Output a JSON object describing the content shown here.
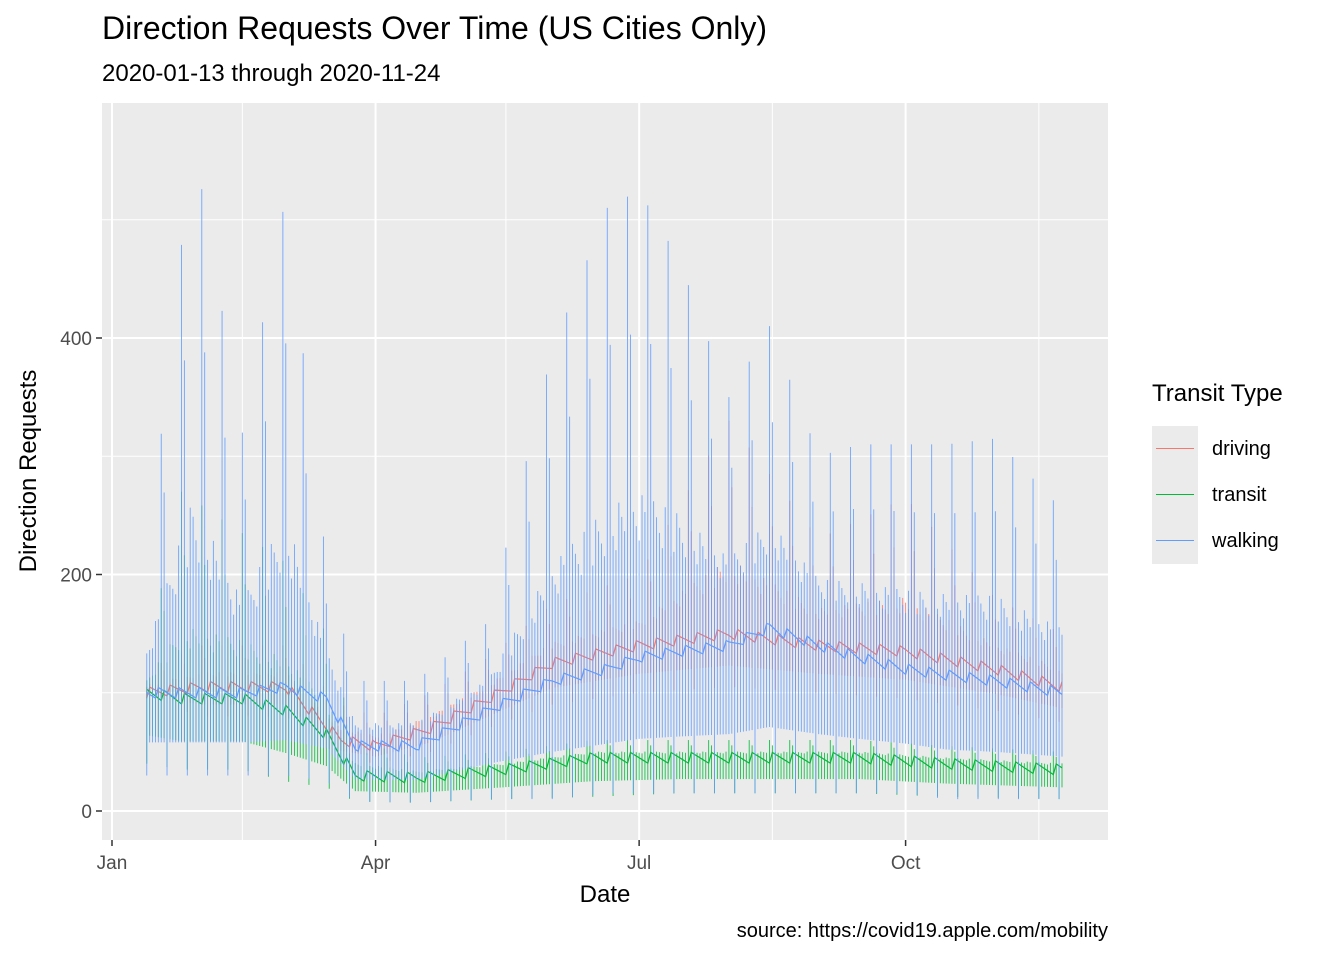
{
  "chart_data": {
    "type": "line",
    "title": "Direction Requests Over Time (US Cities Only)",
    "subtitle": "2020-01-13 through 2020-11-24",
    "xlabel": "Date",
    "ylabel": "Direction Requests",
    "caption": "source: https://covid19.apple.com/mobility",
    "x_range": [
      "2020-01-13",
      "2020-11-24"
    ],
    "x_ticks": [
      {
        "date": "2020-01-01",
        "label": "Jan"
      },
      {
        "date": "2020-04-01",
        "label": "Apr"
      },
      {
        "date": "2020-07-01",
        "label": "Jul"
      },
      {
        "date": "2020-10-01",
        "label": "Oct"
      }
    ],
    "y_ticks": [
      0,
      200,
      400
    ],
    "ylim": [
      -25,
      570
    ],
    "grid": true,
    "legend": {
      "title": "Transit Type",
      "position": "right",
      "entries": [
        {
          "name": "driving",
          "color": "#F8766D"
        },
        {
          "name": "transit",
          "color": "#00BA38"
        },
        {
          "name": "walking",
          "color": "#619CFF"
        }
      ]
    },
    "series": [
      {
        "name": "driving",
        "color": "#F8766D",
        "points": [
          {
            "date": "2020-01-13",
            "low": 95,
            "mid": 100,
            "high": 120
          },
          {
            "date": "2020-02-01",
            "low": 80,
            "mid": 105,
            "high": 140
          },
          {
            "date": "2020-03-01",
            "low": 80,
            "mid": 105,
            "high": 140
          },
          {
            "date": "2020-03-20",
            "low": 45,
            "mid": 60,
            "high": 90
          },
          {
            "date": "2020-04-01",
            "low": 40,
            "mid": 55,
            "high": 80
          },
          {
            "date": "2020-04-20",
            "low": 50,
            "mid": 70,
            "high": 100
          },
          {
            "date": "2020-05-10",
            "low": 70,
            "mid": 95,
            "high": 130
          },
          {
            "date": "2020-06-01",
            "low": 90,
            "mid": 125,
            "high": 175
          },
          {
            "date": "2020-07-01",
            "low": 100,
            "mid": 140,
            "high": 200
          },
          {
            "date": "2020-08-01",
            "low": 105,
            "mid": 150,
            "high": 330
          },
          {
            "date": "2020-09-01",
            "low": 100,
            "mid": 140,
            "high": 230
          },
          {
            "date": "2020-10-01",
            "low": 95,
            "mid": 135,
            "high": 265
          },
          {
            "date": "2020-11-01",
            "low": 85,
            "mid": 120,
            "high": 180
          },
          {
            "date": "2020-11-24",
            "low": 75,
            "mid": 105,
            "high": 150
          }
        ]
      },
      {
        "name": "transit",
        "color": "#00BA38",
        "points": [
          {
            "date": "2020-01-13",
            "low": 40,
            "mid": 100,
            "high": 130
          },
          {
            "date": "2020-01-25",
            "low": 35,
            "mid": 95,
            "high": 270
          },
          {
            "date": "2020-02-15",
            "low": 35,
            "mid": 95,
            "high": 235
          },
          {
            "date": "2020-03-01",
            "low": 25,
            "mid": 85,
            "high": 210
          },
          {
            "date": "2020-03-15",
            "low": 20,
            "mid": 65,
            "high": 150
          },
          {
            "date": "2020-03-25",
            "low": 8,
            "mid": 30,
            "high": 60
          },
          {
            "date": "2020-04-15",
            "low": 7,
            "mid": 28,
            "high": 45
          },
          {
            "date": "2020-05-15",
            "low": 10,
            "mid": 35,
            "high": 50
          },
          {
            "date": "2020-06-15",
            "low": 12,
            "mid": 45,
            "high": 60
          },
          {
            "date": "2020-07-15",
            "low": 15,
            "mid": 45,
            "high": 60
          },
          {
            "date": "2020-08-15",
            "low": 15,
            "mid": 45,
            "high": 60
          },
          {
            "date": "2020-09-15",
            "low": 15,
            "mid": 45,
            "high": 60
          },
          {
            "date": "2020-10-15",
            "low": 12,
            "mid": 40,
            "high": 55
          },
          {
            "date": "2020-11-24",
            "low": 10,
            "mid": 35,
            "high": 50
          }
        ]
      },
      {
        "name": "walking",
        "color": "#619CFF",
        "points": [
          {
            "date": "2020-01-13",
            "low": 30,
            "mid": 100,
            "high": 205
          },
          {
            "date": "2020-01-29",
            "low": 30,
            "mid": 100,
            "high": 570
          },
          {
            "date": "2020-02-15",
            "low": 30,
            "mid": 100,
            "high": 320
          },
          {
            "date": "2020-03-01",
            "low": 30,
            "mid": 105,
            "high": 520
          },
          {
            "date": "2020-03-15",
            "low": 25,
            "mid": 95,
            "high": 210
          },
          {
            "date": "2020-03-25",
            "low": 8,
            "mid": 55,
            "high": 110
          },
          {
            "date": "2020-04-15",
            "low": 7,
            "mid": 55,
            "high": 110
          },
          {
            "date": "2020-05-10",
            "low": 10,
            "mid": 85,
            "high": 160
          },
          {
            "date": "2020-06-01",
            "low": 10,
            "mid": 110,
            "high": 390
          },
          {
            "date": "2020-06-20",
            "low": 15,
            "mid": 120,
            "high": 510
          },
          {
            "date": "2020-07-01",
            "low": 15,
            "mid": 130,
            "high": 525
          },
          {
            "date": "2020-07-15",
            "low": 15,
            "mid": 135,
            "high": 465
          },
          {
            "date": "2020-08-01",
            "low": 15,
            "mid": 140,
            "high": 350
          },
          {
            "date": "2020-08-15",
            "low": 15,
            "mid": 155,
            "high": 410
          },
          {
            "date": "2020-09-01",
            "low": 15,
            "mid": 140,
            "high": 300
          },
          {
            "date": "2020-09-15",
            "low": 15,
            "mid": 130,
            "high": 310
          },
          {
            "date": "2020-10-01",
            "low": 15,
            "mid": 120,
            "high": 310
          },
          {
            "date": "2020-10-15",
            "low": 10,
            "mid": 115,
            "high": 310
          },
          {
            "date": "2020-11-01",
            "low": 10,
            "mid": 110,
            "high": 315
          },
          {
            "date": "2020-11-24",
            "low": 10,
            "mid": 100,
            "high": 255
          }
        ]
      }
    ]
  }
}
